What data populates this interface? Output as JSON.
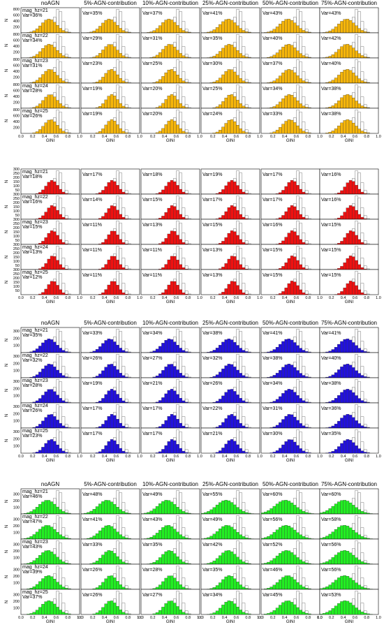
{
  "figure": {
    "panel_columns": [
      "noAGN",
      "5%-AGN-contribution",
      "10%-AGN-contribution",
      "25%-AGN-contribution",
      "50%-AGN-contribution",
      "75%-AGN-contribution"
    ],
    "row_labels": [
      "mag_hz=21",
      "mag_hz=22",
      "mag_hz=23",
      "mag_hz=24",
      "mag_hz=25"
    ],
    "xlabel": "GINI",
    "ylabel": "N",
    "x_ticks": [
      "0.0",
      "0.2",
      "0.4",
      "0.6",
      "0.8",
      "1.0"
    ]
  },
  "chart_data": [
    {
      "type": "bar",
      "color": "#f5b50a",
      "title": "",
      "xlabel": "GINI",
      "ylabel": "N",
      "xlim": [
        0,
        1
      ],
      "ylim": [
        0,
        850
      ],
      "y_ticks": [
        200,
        400,
        600,
        800
      ],
      "show_column_titles": true,
      "var_percent": [
        [
          36,
          35,
          37,
          41,
          43,
          43
        ],
        [
          34,
          29,
          31,
          35,
          40,
          42
        ],
        [
          31,
          23,
          25,
          30,
          37,
          40
        ],
        [
          28,
          19,
          20,
          25,
          34,
          38
        ],
        [
          26,
          19,
          20,
          24,
          33,
          38
        ]
      ]
    },
    {
      "type": "bar",
      "color": "#ee1111",
      "title": "",
      "xlabel": "GINI",
      "ylabel": "N",
      "xlim": [
        0,
        1
      ],
      "ylim": [
        0,
        300
      ],
      "y_ticks": [
        50,
        100,
        150,
        200,
        250,
        300
      ],
      "show_column_titles": false,
      "var_percent": [
        [
          18,
          17,
          18,
          19,
          17,
          16
        ],
        [
          16,
          14,
          15,
          17,
          17,
          16
        ],
        [
          15,
          11,
          13,
          15,
          16,
          15
        ],
        [
          13,
          11,
          11,
          13,
          15,
          15
        ],
        [
          12,
          11,
          11,
          13,
          15,
          15
        ]
      ]
    },
    {
      "type": "bar",
      "color": "#2211dd",
      "title": "",
      "xlabel": "GINI",
      "ylabel": "N",
      "xlim": [
        0,
        1
      ],
      "ylim": [
        0,
        350
      ],
      "y_ticks": [
        100,
        200,
        300
      ],
      "show_column_titles": true,
      "var_percent": [
        [
          35,
          33,
          34,
          38,
          41,
          41
        ],
        [
          32,
          26,
          27,
          32,
          38,
          40
        ],
        [
          28,
          19,
          21,
          26,
          34,
          38
        ],
        [
          26,
          17,
          17,
          22,
          31,
          36
        ],
        [
          23,
          17,
          17,
          21,
          30,
          35
        ]
      ]
    },
    {
      "type": "bar",
      "color": "#22ee22",
      "title": "",
      "xlabel": "GINI",
      "ylabel": "N",
      "xlim": [
        0,
        1
      ],
      "ylim": [
        0,
        380
      ],
      "y_ticks": [
        100,
        200,
        300
      ],
      "show_column_titles": true,
      "var_percent": [
        [
          46,
          48,
          49,
          55,
          60,
          60
        ],
        [
          47,
          41,
          43,
          49,
          56,
          58
        ],
        [
          43,
          33,
          35,
          42,
          52,
          56
        ],
        [
          39,
          26,
          28,
          35,
          46,
          56
        ],
        [
          37,
          26,
          27,
          34,
          45,
          53
        ]
      ]
    }
  ]
}
